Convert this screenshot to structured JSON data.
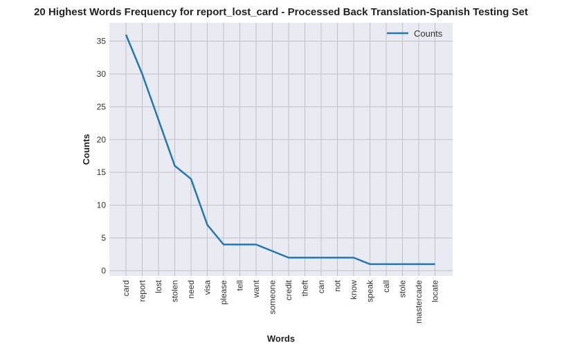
{
  "chart_data": {
    "type": "line",
    "title": "20 Highest Words Frequency for report_lost_card - Processed Back Translation-Spanish Testing Set",
    "xlabel": "Words",
    "ylabel": "Counts",
    "categories": [
      "card",
      "report",
      "lost",
      "stolen",
      "need",
      "visa",
      "please",
      "tell",
      "want",
      "someone",
      "credit",
      "theft",
      "can",
      "not",
      "know",
      "speak",
      "call",
      "stole",
      "mastercade",
      "locate"
    ],
    "series": [
      {
        "name": "Counts",
        "values": [
          36,
          30,
          23,
          16,
          14,
          7,
          4,
          4,
          4,
          3,
          2,
          2,
          2,
          2,
          2,
          1,
          1,
          1,
          1,
          1
        ]
      }
    ],
    "ylim": [
      -0.8,
      37.8
    ],
    "yticks": [
      0,
      5,
      10,
      15,
      20,
      25,
      30,
      35
    ],
    "grid": true,
    "legend_position": "top-right",
    "colors": {
      "plot_background": "#eaeaf2",
      "grid": "#c0c0c6",
      "line": "#1f77b4"
    }
  }
}
